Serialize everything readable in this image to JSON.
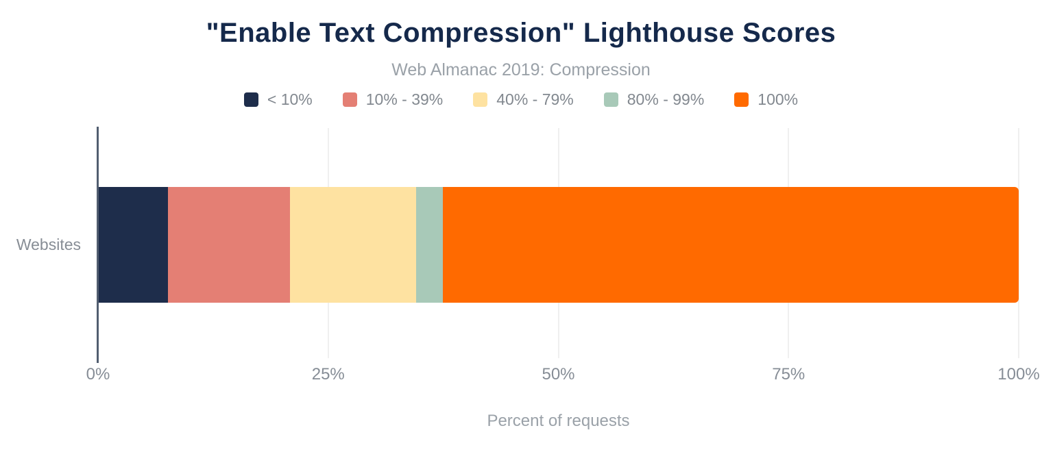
{
  "chart_data": {
    "type": "bar",
    "stacked": true,
    "orientation": "horizontal",
    "title": "\"Enable Text Compression\" Lighthouse Scores",
    "subtitle": "Web Almanac 2019: Compression",
    "categories": [
      "Websites"
    ],
    "series": [
      {
        "name": "< 10%",
        "color": "#1e2d4b",
        "values": [
          7.6
        ]
      },
      {
        "name": "10% - 39%",
        "color": "#e47f74",
        "values": [
          13.2
        ]
      },
      {
        "name": "40% - 79%",
        "color": "#fee2a1",
        "values": [
          13.7
        ]
      },
      {
        "name": "80% - 99%",
        "color": "#a8c9b8",
        "values": [
          2.9
        ]
      },
      {
        "name": "100%",
        "color": "#ff6a00",
        "values": [
          62.5
        ]
      }
    ],
    "xlabel": "Percent of requests",
    "ylabel": "",
    "xlim": [
      0,
      100
    ],
    "x_ticks": [
      {
        "value": 0,
        "label": "0%"
      },
      {
        "value": 25,
        "label": "25%"
      },
      {
        "value": 50,
        "label": "50%"
      },
      {
        "value": 75,
        "label": "75%"
      },
      {
        "value": 100,
        "label": "100%"
      }
    ],
    "grid": "vertical-at-ticks-except-zero",
    "legend_position": "top"
  },
  "colors": {
    "background": "#ffffff",
    "title_text": "#15294b",
    "subtitle_text": "#9aa1a8",
    "legend_text": "#82888f",
    "tick_text": "#868d96",
    "axis_line": "#525e70",
    "gridline": "#efefef"
  }
}
